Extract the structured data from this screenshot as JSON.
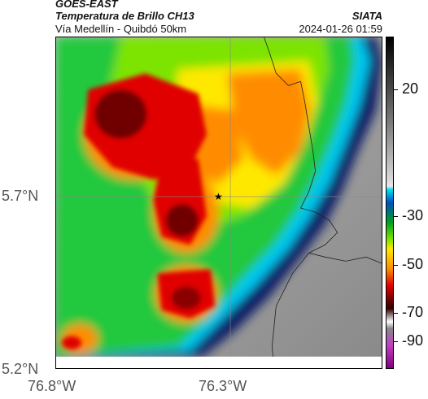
{
  "header": {
    "satellite": "GOES-EAST",
    "product": "Temperatura de Brillo CH13",
    "route": "Vía Medellín - Quibdó 50km",
    "agency": "SIATA",
    "timestamp": "2024-01-26 01:59"
  },
  "axes": {
    "lat_north": "5.7°N",
    "lat_south": "5.2°N",
    "lon_west": "76.8°W",
    "lon_east": "76.3°W"
  },
  "colorbar": {
    "labels": [
      "20",
      "-30",
      "-50",
      "-70",
      "-90"
    ]
  },
  "map": {
    "marker": "star-marker",
    "palette": {
      "ocean_dark": "#0a1a66",
      "cyan": "#00c8f0",
      "green": "#22c83c",
      "lime": "#7be400",
      "yellow": "#ffe800",
      "orange": "#ff8c00",
      "red": "#e00000",
      "darkred": "#700000",
      "warm_ground": "#9a9a9a"
    }
  }
}
